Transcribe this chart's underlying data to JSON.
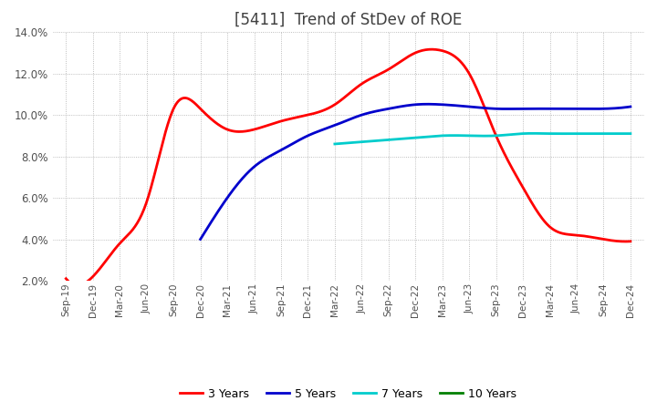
{
  "title": "[5411]  Trend of StDev of ROE",
  "title_color": "#404040",
  "background_color": "#ffffff",
  "plot_background_color": "#ffffff",
  "grid_color": "#aaaaaa",
  "ylim": [
    0.02,
    0.14
  ],
  "yticks": [
    0.02,
    0.04,
    0.06,
    0.08,
    0.1,
    0.12,
    0.14
  ],
  "legend_entries": [
    "3 Years",
    "5 Years",
    "7 Years",
    "10 Years"
  ],
  "legend_colors": [
    "#ff0000",
    "#0000cc",
    "#00cccc",
    "#008000"
  ],
  "x_labels": [
    "Sep-19",
    "Dec-19",
    "Mar-20",
    "Jun-20",
    "Sep-20",
    "Dec-20",
    "Mar-21",
    "Jun-21",
    "Sep-21",
    "Dec-21",
    "Mar-22",
    "Jun-22",
    "Sep-22",
    "Dec-22",
    "Mar-23",
    "Jun-23",
    "Sep-23",
    "Dec-23",
    "Mar-24",
    "Jun-24",
    "Sep-24",
    "Dec-24"
  ],
  "series_3y": [
    0.021,
    0.022,
    0.038,
    0.058,
    0.103,
    0.103,
    0.093,
    0.093,
    0.097,
    0.1,
    0.105,
    0.115,
    0.122,
    0.13,
    0.131,
    0.12,
    0.09,
    0.065,
    0.046,
    0.042,
    0.04,
    0.039
  ],
  "series_5y": [
    null,
    null,
    null,
    null,
    null,
    0.04,
    0.06,
    0.075,
    0.083,
    0.09,
    0.095,
    0.1,
    0.103,
    0.105,
    0.105,
    0.104,
    0.103,
    0.103,
    0.103,
    0.103,
    0.103,
    0.104
  ],
  "series_7y": [
    null,
    null,
    null,
    null,
    null,
    null,
    null,
    null,
    null,
    null,
    0.086,
    0.087,
    0.088,
    0.089,
    0.09,
    0.09,
    0.09,
    0.091,
    0.091,
    0.091,
    0.091,
    0.091
  ],
  "series_10y": [
    null,
    null,
    null,
    null,
    null,
    null,
    null,
    null,
    null,
    null,
    null,
    null,
    null,
    null,
    null,
    null,
    null,
    null,
    null,
    null,
    null,
    null
  ]
}
